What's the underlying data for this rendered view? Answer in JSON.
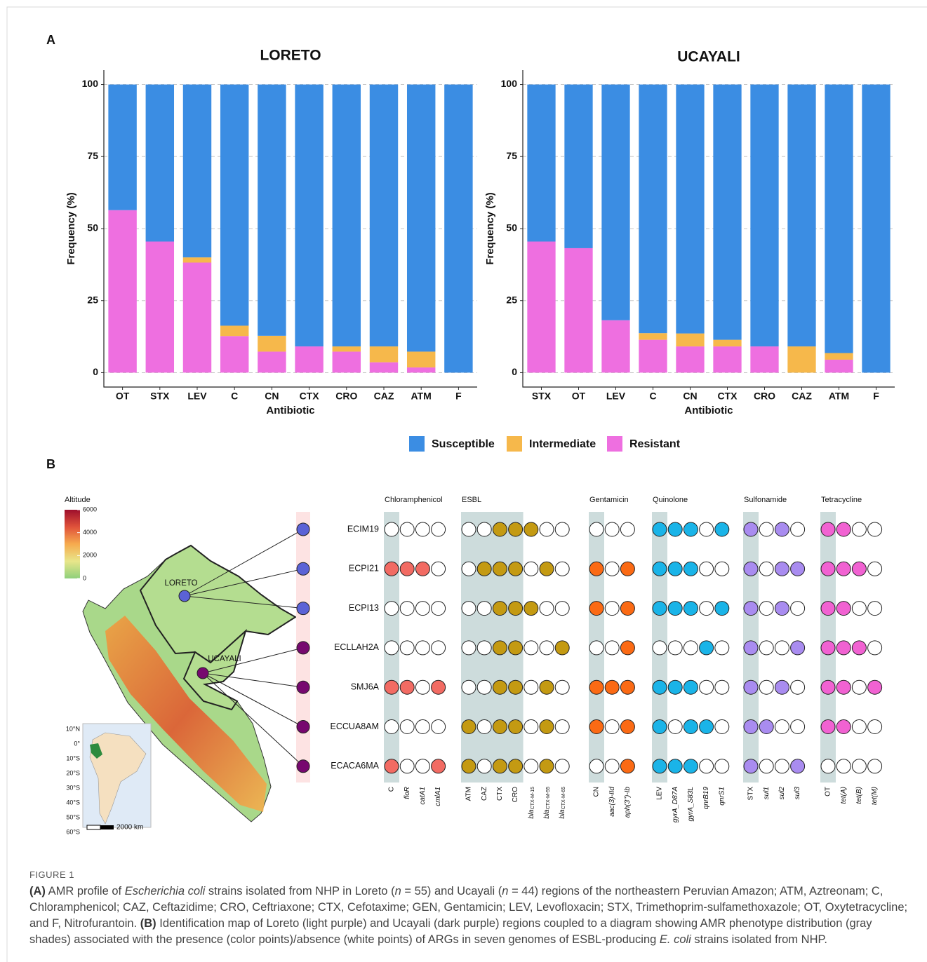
{
  "panel_labels": [
    "A",
    "B"
  ],
  "chart_data": [
    {
      "type": "bar",
      "stacked": true,
      "title": "LORETO",
      "x_label": "Antibiotic",
      "y_label": "Frequency (%)",
      "categories": [
        "OT",
        "STX",
        "LEV",
        "C",
        "CN",
        "CTX",
        "CRO",
        "CAZ",
        "ATM",
        "F"
      ],
      "series": [
        {
          "name": "Susceptible",
          "color": "#3b8de3",
          "values": [
            43.6,
            54.5,
            60.0,
            83.7,
            87.2,
            90.9,
            90.9,
            90.9,
            92.7,
            100
          ]
        },
        {
          "name": "Intermediate",
          "color": "#f6b84b",
          "values": [
            0,
            0,
            1.8,
            3.6,
            5.5,
            0,
            1.8,
            5.5,
            5.5,
            0
          ]
        },
        {
          "name": "Resistant",
          "color": "#ee6fe0",
          "values": [
            56.4,
            45.5,
            38.2,
            12.7,
            7.3,
            9.1,
            7.3,
            3.6,
            1.8,
            0
          ]
        }
      ],
      "ylim": [
        -5,
        105
      ],
      "yticks": [
        0,
        25,
        50,
        75,
        100
      ],
      "grid": true,
      "legend": "bottom"
    },
    {
      "type": "bar",
      "stacked": true,
      "title": "UCAYALI",
      "x_label": "Antibiotic",
      "y_label": "Frequency (%)",
      "categories": [
        "STX",
        "OT",
        "LEV",
        "C",
        "CN",
        "CTX",
        "CRO",
        "CAZ",
        "ATM",
        "F"
      ],
      "series": [
        {
          "name": "Susceptible",
          "color": "#3b8de3",
          "values": [
            54.5,
            56.8,
            81.8,
            86.3,
            86.4,
            88.6,
            90.9,
            90.9,
            93.2,
            100
          ]
        },
        {
          "name": "Intermediate",
          "color": "#f6b84b",
          "values": [
            0,
            0,
            0,
            2.3,
            4.5,
            2.3,
            0,
            9.1,
            2.3,
            0
          ]
        },
        {
          "name": "Resistant",
          "color": "#ee6fe0",
          "values": [
            45.5,
            43.2,
            18.2,
            11.4,
            9.1,
            9.1,
            9.1,
            0,
            4.5,
            0
          ]
        }
      ],
      "ylim": [
        -5,
        105
      ],
      "yticks": [
        0,
        25,
        50,
        75,
        100
      ],
      "grid": true
    }
  ],
  "panel_b": {
    "map": {
      "altitude_title": "Altitude",
      "altitude_ticks": [
        6000,
        4000,
        2000,
        0
      ],
      "altitude_colors": [
        "#8fd07c",
        "#e8e68a",
        "#f6ab4e",
        "#e0523a",
        "#9e0f2c"
      ],
      "regions": [
        {
          "label": "LORETO",
          "color": "#5b62d6"
        },
        {
          "label": "UCAYALI",
          "color": "#77086f"
        }
      ],
      "inset_lat_labels": [
        "10°N",
        "0°",
        "10°S",
        "20°S",
        "30°S",
        "40°S",
        "50°S",
        "60°S"
      ],
      "scale_label": "2000 km"
    },
    "strains": [
      "ECIM19",
      "ECPI21",
      "ECPI13",
      "ECLLAH2A",
      "SMJ6A",
      "ECCUA8AM",
      "ECACA6MA"
    ],
    "groups": [
      {
        "name": "Chloramphenicol",
        "color": "#f26b63",
        "columns": [
          "C",
          "floR",
          "catA1",
          "cmlA1"
        ],
        "phenotype_columns": 1,
        "presence": [
          [
            0,
            0,
            0,
            0
          ],
          [
            1,
            1,
            1,
            0
          ],
          [
            0,
            0,
            0,
            0
          ],
          [
            0,
            0,
            0,
            0
          ],
          [
            1,
            1,
            0,
            1
          ],
          [
            0,
            0,
            0,
            0
          ],
          [
            1,
            0,
            0,
            1
          ]
        ]
      },
      {
        "name": "ESBL",
        "color": "#c49a12",
        "columns": [
          "ATM",
          "CAZ",
          "CTX",
          "CRO",
          "blaCTX-M-15",
          "blaCTX-M-55",
          "blaCTX-M-65"
        ],
        "phenotype_columns": 4,
        "presence": [
          [
            0,
            0,
            1,
            1,
            1,
            0,
            0
          ],
          [
            0,
            1,
            1,
            1,
            0,
            1,
            0
          ],
          [
            0,
            0,
            1,
            1,
            1,
            0,
            0
          ],
          [
            0,
            0,
            1,
            1,
            0,
            0,
            1
          ],
          [
            0,
            0,
            1,
            1,
            0,
            1,
            0
          ],
          [
            1,
            0,
            1,
            1,
            0,
            1,
            0
          ],
          [
            1,
            0,
            1,
            1,
            0,
            1,
            0
          ]
        ]
      },
      {
        "name": "Gentamicin",
        "color": "#fb6a14",
        "columns": [
          "CN",
          "aac(3)-IId",
          "aph(3'')-Ib"
        ],
        "phenotype_columns": 1,
        "presence": [
          [
            0,
            0,
            0
          ],
          [
            1,
            0,
            1
          ],
          [
            1,
            0,
            1
          ],
          [
            0,
            0,
            1
          ],
          [
            1,
            1,
            1
          ],
          [
            1,
            0,
            1
          ],
          [
            0,
            0,
            1
          ]
        ]
      },
      {
        "name": "Quinolone",
        "color": "#1ab4e8",
        "columns": [
          "LEV",
          "gyrA_D87A",
          "gyrA_S83L",
          "qnrB19",
          "qnrS1"
        ],
        "phenotype_columns": 1,
        "presence": [
          [
            1,
            1,
            1,
            0,
            1
          ],
          [
            1,
            1,
            1,
            0,
            0
          ],
          [
            1,
            1,
            1,
            0,
            1
          ],
          [
            0,
            0,
            0,
            1,
            0
          ],
          [
            1,
            1,
            1,
            0,
            0
          ],
          [
            1,
            0,
            1,
            1,
            0
          ],
          [
            1,
            1,
            1,
            0,
            0
          ]
        ]
      },
      {
        "name": "Sulfonamide",
        "color": "#a98cf0",
        "columns": [
          "STX",
          "sul1",
          "sul2",
          "sul3"
        ],
        "phenotype_columns": 1,
        "presence": [
          [
            1,
            0,
            1,
            0
          ],
          [
            1,
            0,
            1,
            1
          ],
          [
            1,
            0,
            1,
            0
          ],
          [
            1,
            0,
            0,
            1
          ],
          [
            1,
            0,
            1,
            0
          ],
          [
            1,
            1,
            0,
            0
          ],
          [
            1,
            0,
            0,
            1
          ]
        ]
      },
      {
        "name": "Tetracycline",
        "color": "#f162d2",
        "columns": [
          "OT",
          "tet(A)",
          "tet(B)",
          "tet(M)"
        ],
        "phenotype_columns": 1,
        "presence": [
          [
            1,
            1,
            0,
            0
          ],
          [
            1,
            1,
            1,
            0
          ],
          [
            1,
            1,
            0,
            0
          ],
          [
            1,
            1,
            1,
            0
          ],
          [
            1,
            1,
            0,
            1
          ],
          [
            1,
            1,
            0,
            0
          ],
          [
            0,
            0,
            0,
            0
          ]
        ]
      }
    ]
  },
  "caption": {
    "figure": "FIGURE 1",
    "segments": [
      {
        "text": "(A)",
        "style": "bold"
      },
      {
        "text": " AMR profile of ",
        "style": "normal"
      },
      {
        "text": "Escherichia coli",
        "style": "italic"
      },
      {
        "text": " strains isolated from NHP in Loreto (",
        "style": "normal"
      },
      {
        "text": "n",
        "style": "italic"
      },
      {
        "text": " = 55) and Ucayali (",
        "style": "normal"
      },
      {
        "text": "n",
        "style": "italic"
      },
      {
        "text": " = 44) regions of the northeastern Peruvian Amazon; ATM, Aztreonam; C, Chloramphenicol; CAZ, Ceftazidime; CRO, Ceftriaxone; CTX, Cefotaxime; GEN, Gentamicin; LEV, Levofloxacin; STX, Trimethoprim-sulfamethoxazole; OT, Oxytetracycline; and F, Nitrofurantoin. ",
        "style": "normal"
      },
      {
        "text": "(B)",
        "style": "bold"
      },
      {
        "text": " Identification map of Loreto (light purple) and Ucayali (dark purple) regions coupled to a diagram showing AMR phenotype distribution (gray shades) associated with the presence (color points)/absence (white points) of ARGs in seven genomes of ESBL-producing ",
        "style": "normal"
      },
      {
        "text": "E. coli",
        "style": "italic"
      },
      {
        "text": " strains isolated from NHP.",
        "style": "normal"
      }
    ]
  }
}
